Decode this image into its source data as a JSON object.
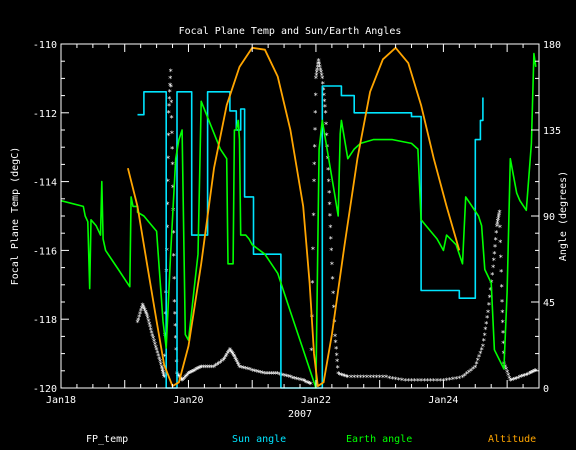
{
  "chart_data": {
    "type": "line",
    "title": "Focal Plane Temp and Sun/Earth Angles",
    "xlabel": "2007",
    "ylabel": "Focal Plane Temp (degC)",
    "y2label": "Angle (degrees)",
    "xlim": [
      0,
      7.5
    ],
    "ylim": [
      -120,
      -110
    ],
    "y2lim": [
      0,
      180
    ],
    "x_ticks": [
      {
        "x": 0,
        "label": "Jan18"
      },
      {
        "x": 2,
        "label": "Jan20"
      },
      {
        "x": 4,
        "label": "Jan22"
      },
      {
        "x": 6,
        "label": "Jan24"
      }
    ],
    "y_ticks": [
      "-120",
      "-118",
      "-116",
      "-114",
      "-112",
      "-110"
    ],
    "y_tick_values": [
      -120,
      -118,
      -116,
      -114,
      -112,
      -110
    ],
    "y2_ticks": [
      "0",
      "45",
      "90",
      "135",
      "180"
    ],
    "y2_tick_values": [
      0,
      45,
      90,
      135,
      180
    ],
    "grid": false,
    "colors": {
      "background": "#000000",
      "axes": "#ffffff",
      "fp_temp": "#ffffff",
      "sun": "#00e5ff",
      "earth": "#00ff00",
      "altitude": "#ffa500"
    },
    "series": [
      {
        "name": "FP_temp",
        "axis": "left",
        "style": "asterisk",
        "points": [
          [
            1.2,
            -118.1
          ],
          [
            1.28,
            -117.6
          ],
          [
            1.35,
            -117.9
          ],
          [
            1.42,
            -118.4
          ],
          [
            1.5,
            -118.9
          ],
          [
            1.58,
            -119.4
          ],
          [
            1.62,
            -119.7
          ],
          [
            1.66,
            -116.0
          ],
          [
            1.69,
            -112.0
          ],
          [
            1.72,
            -110.8
          ],
          [
            1.75,
            -113.5
          ],
          [
            1.78,
            -117.5
          ],
          [
            1.82,
            -119.6
          ],
          [
            1.9,
            -119.8
          ],
          [
            2.0,
            -119.6
          ],
          [
            2.1,
            -119.5
          ],
          [
            2.2,
            -119.4
          ],
          [
            2.4,
            -119.4
          ],
          [
            2.55,
            -119.2
          ],
          [
            2.65,
            -118.9
          ],
          [
            2.72,
            -119.1
          ],
          [
            2.8,
            -119.4
          ],
          [
            3.0,
            -119.5
          ],
          [
            3.2,
            -119.6
          ],
          [
            3.4,
            -119.6
          ],
          [
            3.6,
            -119.7
          ],
          [
            3.8,
            -119.8
          ],
          [
            3.92,
            -119.9
          ],
          [
            3.97,
            -114.0
          ],
          [
            4.0,
            -111.0
          ],
          [
            4.04,
            -110.5
          ],
          [
            4.1,
            -111.0
          ],
          [
            4.15,
            -112.0
          ],
          [
            4.2,
            -114.0
          ],
          [
            4.24,
            -116.0
          ],
          [
            4.3,
            -118.5
          ],
          [
            4.35,
            -119.6
          ],
          [
            4.5,
            -119.7
          ],
          [
            4.8,
            -119.7
          ],
          [
            5.1,
            -119.7
          ],
          [
            5.4,
            -119.8
          ],
          [
            5.7,
            -119.8
          ],
          [
            6.0,
            -119.8
          ],
          [
            6.3,
            -119.7
          ],
          [
            6.5,
            -119.4
          ],
          [
            6.62,
            -118.8
          ],
          [
            6.7,
            -117.8
          ],
          [
            6.78,
            -116.5
          ],
          [
            6.84,
            -115.3
          ],
          [
            6.88,
            -114.9
          ],
          [
            6.92,
            -117.5
          ],
          [
            6.95,
            -119.3
          ],
          [
            7.05,
            -119.8
          ],
          [
            7.2,
            -119.7
          ],
          [
            7.35,
            -119.6
          ],
          [
            7.45,
            -119.5
          ]
        ]
      },
      {
        "name": "Sun angle",
        "axis": "right",
        "style": "line",
        "points": [
          [
            1.2,
            143
          ],
          [
            1.3,
            143
          ],
          [
            1.3,
            155
          ],
          [
            1.65,
            155
          ],
          [
            1.65,
            0
          ],
          [
            1.82,
            0
          ],
          [
            1.82,
            155
          ],
          [
            2.05,
            155
          ],
          [
            2.05,
            80
          ],
          [
            2.3,
            80
          ],
          [
            2.3,
            155
          ],
          [
            2.6,
            155
          ],
          [
            2.6,
            155
          ],
          [
            2.65,
            155
          ],
          [
            2.65,
            145
          ],
          [
            2.75,
            145
          ],
          [
            2.75,
            135
          ],
          [
            2.82,
            135
          ],
          [
            2.82,
            146
          ],
          [
            2.88,
            146
          ],
          [
            2.88,
            100
          ],
          [
            3.02,
            100
          ],
          [
            3.02,
            70
          ],
          [
            3.45,
            70
          ],
          [
            3.45,
            0
          ],
          [
            3.95,
            0
          ],
          [
            4.1,
            0
          ],
          [
            4.1,
            158
          ],
          [
            4.4,
            158
          ],
          [
            4.4,
            153
          ],
          [
            4.6,
            153
          ],
          [
            4.6,
            144
          ],
          [
            5.5,
            144
          ],
          [
            5.5,
            142
          ],
          [
            5.65,
            142
          ],
          [
            5.65,
            51
          ],
          [
            6.25,
            51
          ],
          [
            6.25,
            47
          ],
          [
            6.5,
            47
          ],
          [
            6.5,
            130
          ],
          [
            6.58,
            130
          ],
          [
            6.58,
            140
          ],
          [
            6.62,
            140
          ],
          [
            6.62,
            152
          ]
        ]
      },
      {
        "name": "Earth angle",
        "axis": "right",
        "style": "line",
        "points": [
          [
            0,
            98
          ],
          [
            0.35,
            95
          ],
          [
            0.38,
            90
          ],
          [
            0.42,
            87
          ],
          [
            0.45,
            52
          ],
          [
            0.47,
            88
          ],
          [
            0.55,
            85
          ],
          [
            0.62,
            80
          ],
          [
            0.64,
            108
          ],
          [
            0.66,
            78
          ],
          [
            0.7,
            72
          ],
          [
            0.8,
            67
          ],
          [
            0.9,
            62
          ],
          [
            1.0,
            57
          ],
          [
            1.08,
            53
          ],
          [
            1.1,
            100
          ],
          [
            1.13,
            95
          ],
          [
            1.2,
            95
          ],
          [
            1.2,
            92
          ],
          [
            1.3,
            90
          ],
          [
            1.4,
            86
          ],
          [
            1.5,
            82
          ],
          [
            1.6,
            35
          ],
          [
            1.65,
            21
          ],
          [
            1.72,
            70
          ],
          [
            1.8,
            120
          ],
          [
            1.85,
            130
          ],
          [
            1.9,
            135
          ],
          [
            1.95,
            28
          ],
          [
            2.0,
            25
          ],
          [
            2.1,
            55
          ],
          [
            2.15,
            70
          ],
          [
            2.2,
            150
          ],
          [
            2.5,
            125
          ],
          [
            2.6,
            120
          ],
          [
            2.62,
            65
          ],
          [
            2.7,
            65
          ],
          [
            2.72,
            135
          ],
          [
            2.75,
            135
          ],
          [
            2.78,
            140
          ],
          [
            2.8,
            130
          ],
          [
            2.82,
            80
          ],
          [
            2.9,
            80
          ],
          [
            2.95,
            78
          ],
          [
            3.0,
            75
          ],
          [
            3.2,
            70
          ],
          [
            3.4,
            60
          ],
          [
            3.6,
            40
          ],
          [
            3.8,
            20
          ],
          [
            3.95,
            5
          ],
          [
            4.0,
            0
          ],
          [
            4.05,
            125
          ],
          [
            4.1,
            140
          ],
          [
            4.15,
            130
          ],
          [
            4.2,
            120
          ],
          [
            4.3,
            100
          ],
          [
            4.35,
            90
          ],
          [
            4.38,
            133
          ],
          [
            4.4,
            140
          ],
          [
            4.5,
            120
          ],
          [
            4.6,
            125
          ],
          [
            4.7,
            128
          ],
          [
            4.9,
            130
          ],
          [
            5.2,
            130
          ],
          [
            5.5,
            128
          ],
          [
            5.6,
            125
          ],
          [
            5.65,
            88
          ],
          [
            5.75,
            84
          ],
          [
            5.9,
            78
          ],
          [
            6.0,
            72
          ],
          [
            6.05,
            80
          ],
          [
            6.2,
            75
          ],
          [
            6.3,
            65
          ],
          [
            6.35,
            100
          ],
          [
            6.45,
            95
          ],
          [
            6.55,
            90
          ],
          [
            6.6,
            85
          ],
          [
            6.65,
            62
          ],
          [
            6.75,
            55
          ],
          [
            6.8,
            20
          ],
          [
            6.95,
            10
          ],
          [
            7.0,
            50
          ],
          [
            7.05,
            120
          ],
          [
            7.15,
            102
          ],
          [
            7.2,
            98
          ],
          [
            7.3,
            93
          ],
          [
            7.38,
            128
          ],
          [
            7.42,
            175
          ],
          [
            7.45,
            168
          ]
        ]
      },
      {
        "name": "Altitude",
        "axis": "right",
        "style": "line",
        "points": [
          [
            1.05,
            115
          ],
          [
            1.2,
            95
          ],
          [
            1.35,
            65
          ],
          [
            1.5,
            35
          ],
          [
            1.62,
            12
          ],
          [
            1.75,
            1
          ],
          [
            1.85,
            3
          ],
          [
            2.0,
            22
          ],
          [
            2.2,
            65
          ],
          [
            2.4,
            115
          ],
          [
            2.6,
            148
          ],
          [
            2.8,
            168
          ],
          [
            3.0,
            178
          ],
          [
            3.2,
            177
          ],
          [
            3.4,
            163
          ],
          [
            3.6,
            135
          ],
          [
            3.8,
            95
          ],
          [
            3.9,
            55
          ],
          [
            3.97,
            18
          ],
          [
            4.03,
            1
          ],
          [
            4.12,
            3
          ],
          [
            4.25,
            28
          ],
          [
            4.45,
            75
          ],
          [
            4.65,
            120
          ],
          [
            4.85,
            155
          ],
          [
            5.05,
            172
          ],
          [
            5.25,
            178
          ],
          [
            5.45,
            170
          ],
          [
            5.65,
            148
          ],
          [
            5.85,
            120
          ],
          [
            6.05,
            95
          ],
          [
            6.25,
            72
          ]
        ]
      }
    ]
  },
  "legend": {
    "items": [
      {
        "label": "FP_temp",
        "color": "#ffffff"
      },
      {
        "label": "Sun angle",
        "color": "#00e5ff"
      },
      {
        "label": "Earth angle",
        "color": "#00ff00"
      },
      {
        "label": "Altitude",
        "color": "#ffa500"
      }
    ]
  }
}
